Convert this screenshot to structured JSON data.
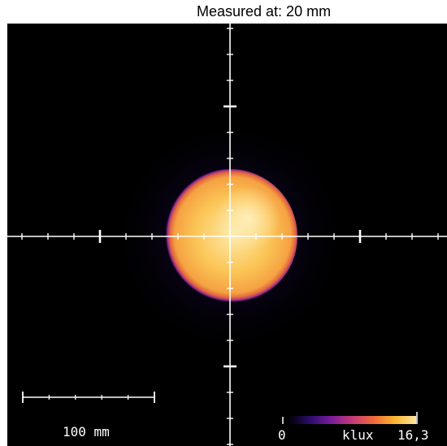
{
  "header": {
    "measurement_label": "Measured at: 20 mm"
  },
  "scale_bar": {
    "label": "100 mm"
  },
  "colorbar": {
    "min_label": "0",
    "unit_label": "klux",
    "max_label": "16,3",
    "min_value": 0,
    "max_value": 16.3,
    "gradient_colors": [
      "#000000",
      "#2a0c6b",
      "#7a1d9a",
      "#c53a7a",
      "#ef6b3a",
      "#fbb430",
      "#fde7a0"
    ]
  },
  "spot": {
    "core_color": "#f5a84a",
    "highlight_color": "#fbe6a8",
    "edge_color": "#5a1a90"
  },
  "crosshair": {
    "color": "#ffffff"
  }
}
